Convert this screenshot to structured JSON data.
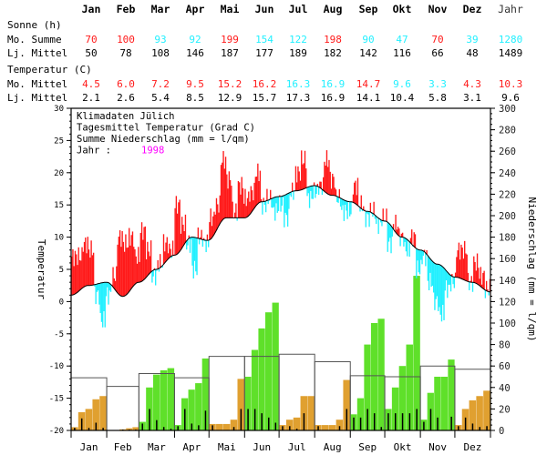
{
  "colors": {
    "above": "#ff1a1a",
    "below": "#22f0ff",
    "precip_above": "#5fe02a",
    "precip_below": "#e0a030",
    "year": "#ff00ff"
  },
  "table": {
    "months": [
      "Jan",
      "Feb",
      "Mar",
      "Apr",
      "Mai",
      "Jun",
      "Jul",
      "Aug",
      "Sep",
      "Okt",
      "Nov",
      "Dez",
      "Jahr"
    ],
    "sun_title": "Sonne (h)",
    "sun_month_label": "Mo. Summe",
    "sun_month": [
      "70",
      "100",
      "93",
      "92",
      "199",
      "154",
      "122",
      "198",
      "90",
      "47",
      "70",
      "39",
      "1280"
    ],
    "sun_month_above": [
      true,
      true,
      false,
      false,
      true,
      false,
      false,
      true,
      false,
      false,
      true,
      false,
      false
    ],
    "sun_mean_label": "Lj. Mittel",
    "sun_mean": [
      "50",
      "78",
      "108",
      "146",
      "187",
      "177",
      "189",
      "182",
      "142",
      "116",
      "66",
      "48",
      "1489"
    ],
    "temp_title": "Temperatur (C)",
    "temp_month_label": "Mo. Mittel",
    "temp_month": [
      "4.5",
      "6.0",
      "7.2",
      "9.5",
      "15.2",
      "16.2",
      "16.3",
      "16.9",
      "14.7",
      "9.6",
      "3.3",
      "4.3",
      "10.3"
    ],
    "temp_month_above": [
      true,
      true,
      true,
      true,
      true,
      true,
      false,
      false,
      true,
      false,
      false,
      true,
      true
    ],
    "temp_mean_label": "Lj. Mittel",
    "temp_mean": [
      "2.1",
      "2.6",
      "5.4",
      "8.5",
      "12.9",
      "15.7",
      "17.3",
      "16.9",
      "14.1",
      "10.4",
      "5.8",
      "3.1",
      "9.6"
    ]
  },
  "chart_data": {
    "type": "bar",
    "legend": [
      "Klimadaten Jülich",
      "Tagesmittel Temperatur (Grad C)",
      "Summe Niederschlag (mm = l/qm)"
    ],
    "year_label": "Jahr :",
    "year": "1998",
    "ylabel_left": "Temperatur",
    "ylabel_right": "Niederschlag (mm = l/qm)",
    "ylim_left": [
      -20,
      30
    ],
    "ylim_right": [
      0,
      300
    ],
    "yticks_left": [
      "30",
      "25",
      "20",
      "15",
      "10",
      "5",
      "0",
      "-5",
      "-10",
      "-15",
      "-20"
    ],
    "yticks_right": [
      "300",
      "280",
      "260",
      "240",
      "220",
      "200",
      "180",
      "160",
      "140",
      "120",
      "100",
      "80",
      "60",
      "40",
      "20",
      "0"
    ],
    "categories": [
      "Jan",
      "Feb",
      "Mar",
      "Apr",
      "Mai",
      "Jun",
      "Jul",
      "Aug",
      "Sep",
      "Okt",
      "Nov",
      "Dez"
    ],
    "temperature_5day": [
      7,
      7,
      9,
      8,
      1,
      -3,
      1,
      4,
      10,
      9,
      10,
      7,
      11,
      8,
      4,
      6,
      9,
      8,
      15,
      12,
      9,
      5,
      10,
      9,
      13,
      15,
      22,
      19,
      14,
      18,
      16,
      17,
      20,
      15,
      16,
      14,
      15,
      13,
      17,
      20,
      22,
      16,
      17,
      18,
      22,
      19,
      16,
      14,
      14,
      18,
      15,
      13,
      14,
      12,
      13,
      9,
      12,
      10,
      8,
      10,
      5,
      7,
      3,
      0,
      -2,
      2,
      3,
      8,
      8,
      3,
      6,
      4,
      2
    ],
    "longterm_temperature_curve": {
      "day": [
        0,
        15,
        31,
        45,
        59,
        74,
        90,
        105,
        119,
        135,
        151,
        166,
        181,
        196,
        212,
        227,
        243,
        258,
        273,
        288,
        304,
        319,
        334,
        349,
        365
      ],
      "value": [
        1,
        2.5,
        3,
        0.8,
        3,
        5,
        7.2,
        10,
        9.5,
        13,
        13,
        15.5,
        16.3,
        17.2,
        18,
        16.5,
        15.5,
        14,
        12.5,
        10,
        8,
        5.8,
        3.8,
        3,
        1.5
      ]
    },
    "precip_cumulative_by_month": [
      [
        3,
        17,
        20,
        29,
        32
      ],
      [
        0,
        0,
        1,
        2,
        3
      ],
      [
        8,
        40,
        52,
        56,
        58
      ],
      [
        5,
        30,
        38,
        44,
        67
      ],
      [
        6,
        6,
        6,
        10,
        48
      ],
      [
        50,
        75,
        95,
        110,
        119
      ],
      [
        5,
        10,
        12,
        32,
        32
      ],
      [
        5,
        5,
        5,
        10,
        47
      ],
      [
        15,
        30,
        80,
        100,
        104
      ],
      [
        20,
        40,
        60,
        80,
        144
      ],
      [
        10,
        35,
        50,
        50,
        66
      ],
      [
        5,
        20,
        28,
        32,
        37
      ]
    ],
    "precip_longterm_mean": [
      49,
      41,
      53,
      49,
      69,
      69,
      71,
      64,
      51,
      50,
      60,
      57
    ]
  }
}
